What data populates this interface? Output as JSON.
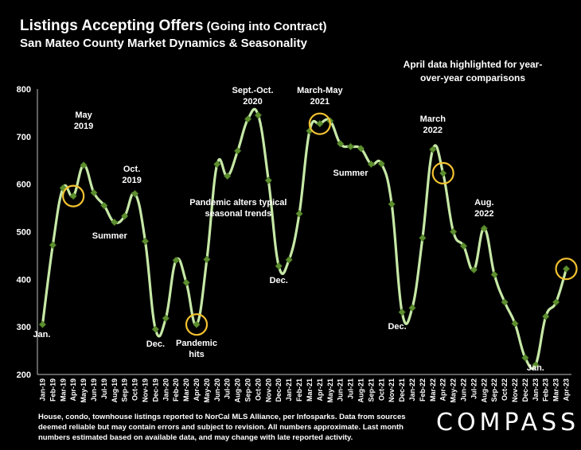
{
  "header": {
    "title_main": "Listings Accepting Offers",
    "title_paren": " (Going into Contract)",
    "subtitle": "San Mateo County Market Dynamics & Seasonality"
  },
  "note": "April data highlighted for year-over-year comparisons",
  "footnote": "House, condo, townhouse listings reported to NorCal MLS Alliance, per Infosparks. Data from sources deemed reliable but may contain errors and subject to revision. All numbers approximate. Last month numbers estimated based on available data, and may change with late reported activity.",
  "logo": "COMPASS",
  "colors": {
    "line": "#c6e8a6",
    "marker": "#5e8f2e",
    "highlight": "#f2c230",
    "background": "#000000",
    "text": "#ffffff"
  },
  "chart_data": {
    "type": "line",
    "ylim": [
      200,
      800
    ],
    "yticks": [
      200,
      300,
      400,
      500,
      600,
      700,
      800
    ],
    "grid": false,
    "categories": [
      "Jan-19",
      "Feb-19",
      "Mar-19",
      "Apr-19",
      "May-19",
      "Jun-19",
      "Jul-19",
      "Aug-19",
      "Sep-19",
      "Oct-19",
      "Nov-19",
      "Dec-19",
      "Jan-20",
      "Feb-20",
      "Mar-20",
      "Apr-20",
      "May-20",
      "Jun-20",
      "Jul-20",
      "Aug-20",
      "Sep-20",
      "Oct-20",
      "Nov-20",
      "Dec-20",
      "Jan-21",
      "Feb-21",
      "Mar-21",
      "Apr-21",
      "May-21",
      "Jun-21",
      "Jul-21",
      "Aug-21",
      "Sep-21",
      "Oct-21",
      "Nov-21",
      "Dec-21",
      "Jan-22",
      "Feb-22",
      "Mar-22",
      "Apr-22",
      "May-22",
      "Jun-22",
      "Jul-22",
      "Aug-22",
      "Sep-22",
      "Oct-22",
      "Nov-22",
      "Dec-22",
      "Jan-23",
      "Feb-23",
      "Mar-23",
      "Apr-23"
    ],
    "values": [
      305,
      472,
      592,
      575,
      640,
      582,
      555,
      520,
      533,
      580,
      480,
      295,
      318,
      440,
      393,
      305,
      442,
      642,
      617,
      670,
      737,
      745,
      608,
      428,
      441,
      538,
      712,
      727,
      733,
      685,
      679,
      675,
      642,
      643,
      558,
      331,
      340,
      487,
      673,
      623,
      500,
      470,
      420,
      507,
      410,
      352,
      307,
      235,
      220,
      322,
      352,
      422
    ],
    "highlighted": [
      "Apr-19",
      "Apr-20",
      "Apr-21",
      "Apr-22",
      "Apr-23"
    ],
    "annotations": [
      {
        "lines": [
          "Jan."
        ],
        "at": "Jan-19"
      },
      {
        "lines": [
          "May",
          "2019"
        ],
        "at": "May-19"
      },
      {
        "lines": [
          "Summer"
        ],
        "at": "Aug-19"
      },
      {
        "lines": [
          "Oct.",
          "2019"
        ],
        "at": "Oct-19"
      },
      {
        "lines": [
          "Dec."
        ],
        "at": "Dec-19"
      },
      {
        "lines": [
          "Pandemic",
          "hits"
        ],
        "at": "Apr-20"
      },
      {
        "lines": [
          "Sept.-Oct.",
          "2020"
        ],
        "at": "Sep-20"
      },
      {
        "lines": [
          "Pandemic alters typical",
          "seasonal trends"
        ],
        "at": "Nov-20"
      },
      {
        "lines": [
          "Dec."
        ],
        "at": "Dec-20"
      },
      {
        "lines": [
          "March-May",
          "2021"
        ],
        "at": "Apr-21"
      },
      {
        "lines": [
          "Summer"
        ],
        "at": "Jul-21"
      },
      {
        "lines": [
          "Dec."
        ],
        "at": "Dec-21"
      },
      {
        "lines": [
          "March",
          "2022"
        ],
        "at": "Mar-22"
      },
      {
        "lines": [
          "Aug.",
          "2022"
        ],
        "at": "Aug-22"
      },
      {
        "lines": [
          "Jan."
        ],
        "at": "Jan-23"
      }
    ]
  }
}
